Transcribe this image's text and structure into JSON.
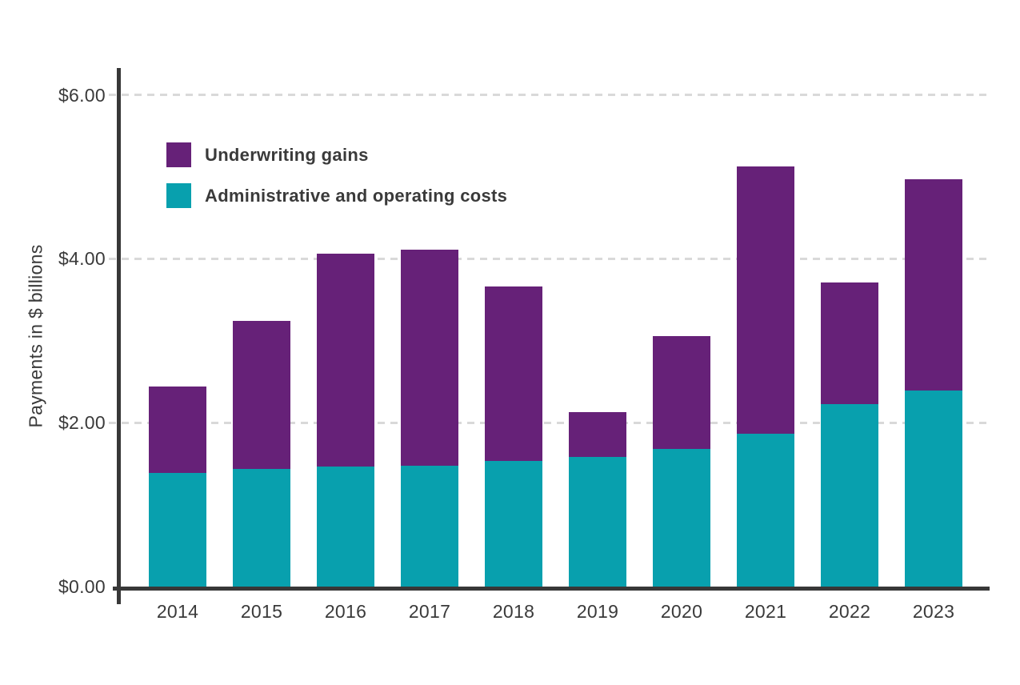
{
  "chart_data": {
    "type": "bar",
    "stacked": true,
    "title": "",
    "xlabel": "",
    "ylabel": "Payments in $ billions",
    "categories": [
      "2014",
      "2015",
      "2016",
      "2017",
      "2018",
      "2019",
      "2020",
      "2021",
      "2022",
      "2023"
    ],
    "series": [
      {
        "name": "Underwriting gains",
        "color": "#662178",
        "stack_position": "top",
        "values": [
          1.05,
          1.8,
          2.6,
          2.64,
          2.13,
          0.55,
          1.38,
          3.26,
          1.48,
          2.58
        ]
      },
      {
        "name": "Administrative and operating costs",
        "color": "#08A0AE",
        "stack_position": "bottom",
        "values": [
          1.39,
          1.44,
          1.46,
          1.47,
          1.53,
          1.58,
          1.68,
          1.87,
          2.23,
          2.39
        ]
      }
    ],
    "totals": [
      2.44,
      3.24,
      4.06,
      4.11,
      3.66,
      2.13,
      3.06,
      5.13,
      3.71,
      4.97
    ],
    "ylim": [
      0,
      6
    ],
    "yticks": [
      {
        "value": 0,
        "label": "$0.00"
      },
      {
        "value": 2,
        "label": "$2.00"
      },
      {
        "value": 4,
        "label": "$4.00"
      },
      {
        "value": 6,
        "label": "$6.00"
      }
    ],
    "grid": "horizontal dashed",
    "legend_position": "top-left inside plot"
  },
  "colors": {
    "underwriting": "#662178",
    "admin": "#08A0AE",
    "axis": "#383838",
    "gridline": "#D9D9D9",
    "text": "#3A3A3A",
    "background": "#FFFFFF"
  }
}
